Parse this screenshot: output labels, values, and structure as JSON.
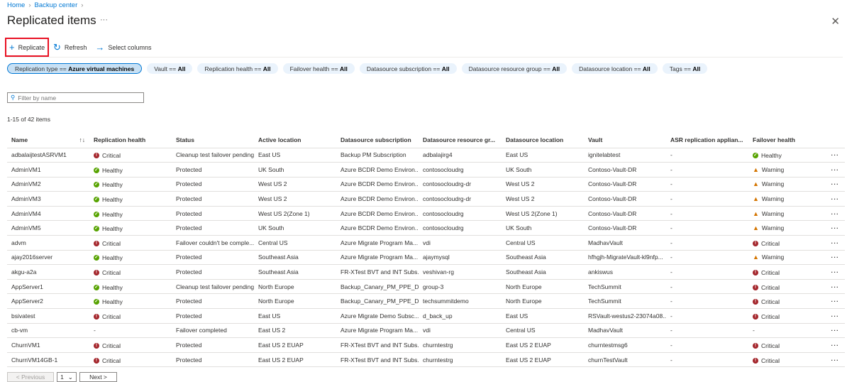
{
  "breadcrumb": [
    "Home",
    "Backup center"
  ],
  "title": "Replicated items",
  "toolbar": {
    "replicate": "Replicate",
    "refresh": "Refresh",
    "select_columns": "Select columns"
  },
  "filters": [
    {
      "label": "Replication type == ",
      "value": "Azure virtual machines",
      "selected": true
    },
    {
      "label": "Vault == ",
      "value": "All"
    },
    {
      "label": "Replication health == ",
      "value": "All"
    },
    {
      "label": "Failover health == ",
      "value": "All"
    },
    {
      "label": "Datasource subscription == ",
      "value": "All"
    },
    {
      "label": "Datasource resource group == ",
      "value": "All"
    },
    {
      "label": "Datasource location == ",
      "value": "All"
    },
    {
      "label": "Tags == ",
      "value": "All"
    }
  ],
  "search": {
    "placeholder": "Filter by name"
  },
  "count": "1-15 of 42 items",
  "columns": [
    "Name",
    "Replication health",
    "Status",
    "Active location",
    "Datasource subscription",
    "Datasource resource gr...",
    "Datasource location",
    "Vault",
    "ASR replication applian...",
    "Failover health"
  ],
  "rows": [
    [
      "adbalaijtestASRVM1",
      "Critical",
      "Cleanup test failover pending",
      "East US",
      "Backup PM Subscription",
      "adbalajirg4",
      "East US",
      "ignitelabtest",
      "-",
      "Healthy"
    ],
    [
      "AdminVM1",
      "Healthy",
      "Protected",
      "UK South",
      "Azure BCDR Demo Environ...",
      "contosocloudrg",
      "UK South",
      "Contoso-Vault-DR",
      "-",
      "Warning"
    ],
    [
      "AdminVM2",
      "Healthy",
      "Protected",
      "West US 2",
      "Azure BCDR Demo Environ...",
      "contosocloudrg-dr",
      "West US 2",
      "Contoso-Vault-DR",
      "-",
      "Warning"
    ],
    [
      "AdminVM3",
      "Healthy",
      "Protected",
      "West US 2",
      "Azure BCDR Demo Environ...",
      "contosocloudrg-dr",
      "West US 2",
      "Contoso-Vault-DR",
      "-",
      "Warning"
    ],
    [
      "AdminVM4",
      "Healthy",
      "Protected",
      "West US 2(Zone 1)",
      "Azure BCDR Demo Environ...",
      "contosocloudrg",
      "West US 2(Zone 1)",
      "Contoso-Vault-DR",
      "-",
      "Warning"
    ],
    [
      "AdminVM5",
      "Healthy",
      "Protected",
      "UK South",
      "Azure BCDR Demo Environ...",
      "contosocloudrg",
      "UK South",
      "Contoso-Vault-DR",
      "-",
      "Warning"
    ],
    [
      "advm",
      "Critical",
      "Failover couldn't be comple...",
      "Central US",
      "Azure Migrate Program Ma...",
      "vdi",
      "Central US",
      "MadhavVault",
      "-",
      "Critical"
    ],
    [
      "ajay2016server",
      "Healthy",
      "Protected",
      "Southeast Asia",
      "Azure Migrate Program Ma...",
      "ajaymysql",
      "Southeast Asia",
      "hfhgjh-MigrateVault-kl9nfp...",
      "-",
      "Warning"
    ],
    [
      "akgu-a2a",
      "Critical",
      "Protected",
      "Southeast Asia",
      "FR-XTest BVT and INT Subs...",
      "veshivan-rg",
      "Southeast Asia",
      "ankiswus",
      "-",
      "Critical"
    ],
    [
      "AppServer1",
      "Healthy",
      "Cleanup test failover pending",
      "North Europe",
      "Backup_Canary_PM_PPE_De...",
      "group-3",
      "North Europe",
      "TechSummit",
      "-",
      "Critical"
    ],
    [
      "AppServer2",
      "Healthy",
      "Protected",
      "North Europe",
      "Backup_Canary_PM_PPE_De...",
      "techsummitdemo",
      "North Europe",
      "TechSummit",
      "-",
      "Critical"
    ],
    [
      "bsivatest",
      "Critical",
      "Protected",
      "East US",
      "Azure Migrate Demo Subsc...",
      "d_back_up",
      "East US",
      "RSVault-westus2-23074a08...",
      "-",
      "Critical"
    ],
    [
      "cb-vm",
      "-",
      "Failover completed",
      "East US 2",
      "Azure Migrate Program Ma...",
      "vdi",
      "Central US",
      "MadhavVault",
      "-",
      "-"
    ],
    [
      "ChurnVM1",
      "Critical",
      "Protected",
      "East US 2 EUAP",
      "FR-XTest BVT and INT Subs...",
      "churntestrg",
      "East US 2 EUAP",
      "churntestmsg6",
      "-",
      "Critical"
    ],
    [
      "ChurnVM14GB-1",
      "Critical",
      "Protected",
      "East US 2 EUAP",
      "FR-XTest BVT and INT Subs...",
      "churntestrg",
      "East US 2 EUAP",
      "churnTestVault",
      "-",
      "Critical"
    ]
  ],
  "pager": {
    "previous": "< Previous",
    "page": "1",
    "next": "Next >"
  },
  "colors": {
    "accent": "#0078d4",
    "critical": "#a4262c",
    "healthy": "#57a300",
    "warning": "#d47500",
    "highlight": "#e81123"
  }
}
